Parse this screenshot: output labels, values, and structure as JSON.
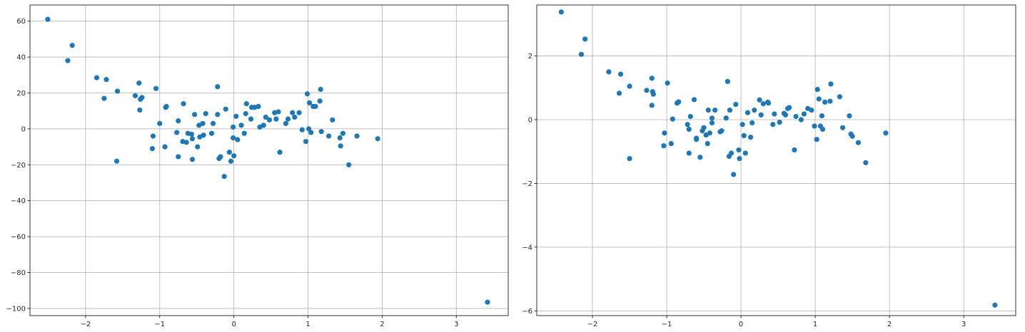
{
  "chart_data": [
    {
      "type": "scatter",
      "title": "",
      "xlabel": "",
      "ylabel": "",
      "xlim": [
        -2.75,
        3.7
      ],
      "ylim": [
        -104,
        69
      ],
      "xticks": [
        -2,
        -1,
        0,
        1,
        2,
        3
      ],
      "yticks": [
        -100,
        -80,
        -60,
        -40,
        -20,
        0,
        20,
        40,
        60
      ],
      "grid": true,
      "color": "#1f77b4",
      "series": [
        {
          "x": [
            -2.51,
            -2.24,
            -2.18,
            -1.85,
            -1.72,
            -1.75,
            -1.57,
            -1.58,
            -1.33,
            -1.27,
            -1.24,
            -1.28,
            -1.26,
            -1.05,
            -1.09,
            -1.1,
            -1.0,
            -0.93,
            -0.92,
            -0.91,
            -0.77,
            -0.75,
            -0.75,
            -0.69,
            -0.68,
            -0.64,
            -0.62,
            -0.57,
            -0.56,
            -0.56,
            -0.53,
            -0.49,
            -0.47,
            -0.46,
            -0.42,
            -0.41,
            -0.38,
            -0.3,
            -0.28,
            -0.22,
            -0.22,
            -0.2,
            -0.18,
            -0.13,
            -0.11,
            -0.06,
            -0.04,
            -0.01,
            0.0,
            0.03,
            0.05,
            0.1,
            0.14,
            0.16,
            0.17,
            0.23,
            0.24,
            0.28,
            0.33,
            0.35,
            0.4,
            0.43,
            0.48,
            0.55,
            0.57,
            0.6,
            0.62,
            0.7,
            0.73,
            0.79,
            0.82,
            0.88,
            0.92,
            0.97,
            0.99,
            1.01,
            1.02,
            1.04,
            1.07,
            1.1,
            1.16,
            1.17,
            1.18,
            1.28,
            1.33,
            1.43,
            1.44,
            1.47,
            1.55,
            1.66,
            1.94,
            3.42,
            -0.01
          ],
          "y": [
            61,
            38,
            46.5,
            28.5,
            27.5,
            17,
            21,
            -18,
            18.5,
            10.5,
            17.5,
            25.5,
            16.5,
            22.5,
            -4,
            -11,
            3,
            -10,
            12,
            12.5,
            -2,
            4.5,
            -15.5,
            -7,
            14,
            -7.5,
            -2.5,
            -3,
            -17,
            -5.5,
            8,
            -10,
            2,
            -4.5,
            3,
            -3.5,
            8.5,
            -2.5,
            3,
            8,
            23.5,
            -16.5,
            -15.5,
            -26.5,
            11,
            -13,
            -18,
            1,
            -15,
            7,
            -6,
            2,
            -2.5,
            8.5,
            14,
            5.5,
            12,
            12,
            12.5,
            1,
            2,
            6.5,
            5,
            9,
            5.5,
            9.5,
            -13,
            3,
            5.5,
            9,
            6.5,
            9,
            -0.5,
            -7,
            19.5,
            0,
            14.5,
            -2,
            12.5,
            12.5,
            15.5,
            22,
            -1.5,
            -4,
            5,
            -5,
            -9.5,
            -2.5,
            -20,
            -4,
            -5.5,
            -96.5,
            -5
          ]
        }
      ]
    },
    {
      "type": "scatter",
      "title": "",
      "xlabel": "",
      "ylabel": "",
      "xlim": [
        -2.75,
        3.7
      ],
      "ylim": [
        -6.15,
        3.6
      ],
      "xticks": [
        -2,
        -1,
        0,
        1,
        2,
        3
      ],
      "yticks": [
        -6,
        -4,
        -2,
        0,
        2
      ],
      "grid": true,
      "color": "#1f77b4",
      "series": [
        {
          "x": [
            -2.42,
            -2.15,
            -2.1,
            -1.78,
            -1.62,
            -1.64,
            -1.5,
            -1.5,
            -1.27,
            -1.2,
            -1.19,
            -1.2,
            -1.18,
            -0.99,
            -1.03,
            -1.04,
            -0.94,
            -0.92,
            -0.86,
            -0.84,
            -0.72,
            -0.7,
            -0.68,
            -0.7,
            -0.63,
            -0.6,
            -0.6,
            -0.55,
            -0.5,
            -0.52,
            -0.47,
            -0.45,
            -0.44,
            -0.42,
            -0.39,
            -0.39,
            -0.35,
            -0.28,
            -0.26,
            -0.2,
            -0.18,
            -0.16,
            -0.15,
            -0.13,
            -0.1,
            -0.07,
            -0.03,
            -0.02,
            0.02,
            0.04,
            0.06,
            0.09,
            0.13,
            0.15,
            0.18,
            0.25,
            0.27,
            0.3,
            0.36,
            0.37,
            0.43,
            0.45,
            0.52,
            0.58,
            0.6,
            0.63,
            0.65,
            0.72,
            0.74,
            0.81,
            0.85,
            0.9,
            0.95,
            0.99,
            1.02,
            1.03,
            1.05,
            1.07,
            1.09,
            1.1,
            1.13,
            1.2,
            1.21,
            1.33,
            1.37,
            1.46,
            1.48,
            1.5,
            1.58,
            1.68,
            1.95,
            3.42
          ],
          "y": [
            3.38,
            2.05,
            2.53,
            1.5,
            1.43,
            0.83,
            1.05,
            -1.22,
            0.92,
            0.45,
            0.88,
            1.3,
            0.8,
            1.15,
            -0.42,
            -0.82,
            -0.75,
            0.02,
            0.52,
            0.56,
            -0.15,
            -1.05,
            0.1,
            -0.3,
            0.63,
            -0.58,
            -0.62,
            -1.18,
            -0.25,
            -0.35,
            -0.48,
            -0.75,
            0.3,
            -0.42,
            -0.1,
            0.05,
            0.3,
            -0.38,
            -0.35,
            0.05,
            1.2,
            -1.15,
            0.3,
            -1.05,
            -1.72,
            0.48,
            -0.95,
            -1.22,
            -0.15,
            -0.5,
            -1.05,
            0.22,
            -0.55,
            -0.1,
            0.3,
            0.62,
            0.15,
            0.5,
            0.55,
            0.52,
            -0.15,
            0.18,
            -0.08,
            0.2,
            0.15,
            0.35,
            0.38,
            -0.95,
            0.1,
            0.0,
            0.18,
            0.35,
            0.3,
            -0.2,
            -0.62,
            0.95,
            0.65,
            -0.2,
            0.12,
            -0.3,
            0.55,
            0.58,
            1.12,
            0.72,
            -0.25,
            0.12,
            -0.45,
            -0.52,
            -0.72,
            -1.35,
            -0.42,
            -5.82
          ]
        }
      ]
    }
  ]
}
